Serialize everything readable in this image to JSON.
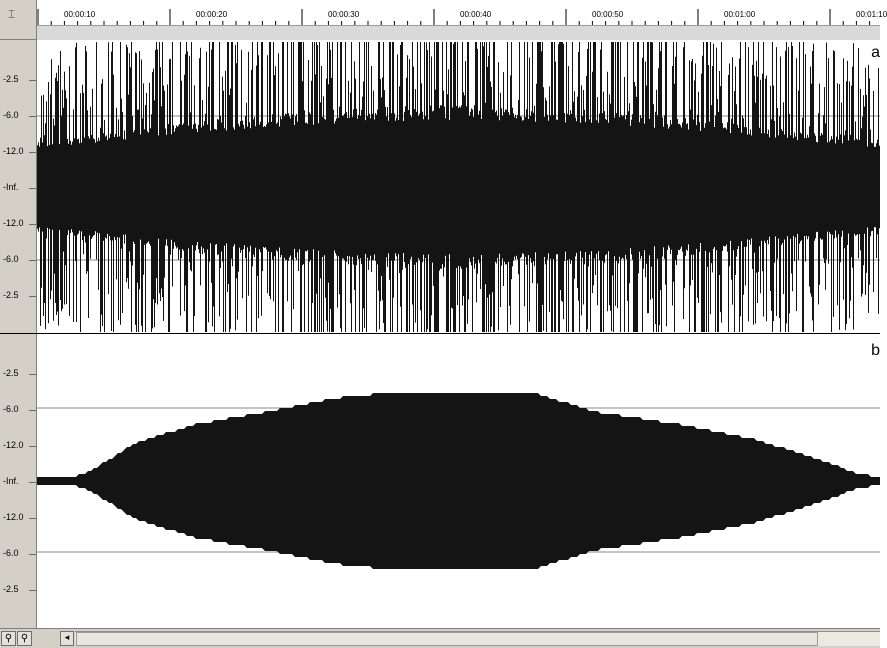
{
  "timeline": {
    "ticks": [
      "00:00:10",
      "00:00:20",
      "00:00:30",
      "00:00:40",
      "00:00:50",
      "00:01:00",
      "00:01:10"
    ]
  },
  "tracks": [
    {
      "label": "a",
      "db_labels": [
        "-2.5",
        "-6.0",
        "-12.0",
        "-Inf.",
        "-12.0",
        "-6.0",
        "-2.5"
      ]
    },
    {
      "label": "b",
      "db_labels": [
        "-2.5",
        "-6.0",
        "-12.0",
        "-Inf.",
        "-12.0",
        "-6.0",
        "-2.5"
      ]
    }
  ],
  "icons": {
    "ruler_corner": "selection-cursor-icon",
    "zoom_in": "zoom-in-icon",
    "zoom_out": "zoom-out-icon",
    "scroll_left": "scroll-left-arrow-icon"
  },
  "colors": {
    "waveform": "#141414",
    "background": "#ffffff",
    "chrome": "#d4d0c8",
    "gridline": "#888888"
  }
}
